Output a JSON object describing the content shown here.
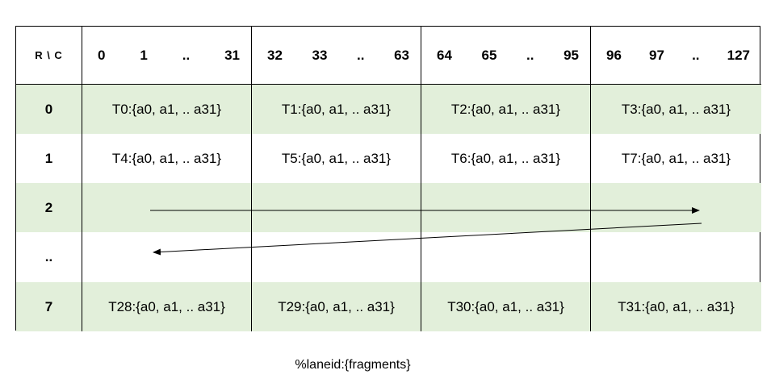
{
  "header": {
    "corner": "R \\ C",
    "column_groups": [
      [
        "0",
        "1",
        "..",
        "31"
      ],
      [
        "32",
        "33",
        "..",
        "63"
      ],
      [
        "64",
        "65",
        "..",
        "95"
      ],
      [
        "96",
        "97",
        "..",
        "127"
      ]
    ]
  },
  "rows": [
    {
      "label": "0",
      "cells": [
        "T0:{a0, a1, .. a31}",
        "T1:{a0, a1, .. a31}",
        "T2:{a0, a1, .. a31}",
        "T3:{a0, a1, .. a31}"
      ]
    },
    {
      "label": "1",
      "cells": [
        "T4:{a0, a1, .. a31}",
        "T5:{a0, a1, .. a31}",
        "T6:{a0, a1, .. a31}",
        "T7:{a0, a1, .. a31}"
      ]
    },
    {
      "label": "2",
      "cells": [
        "",
        "",
        "",
        ""
      ]
    },
    {
      "label": "..",
      "cells": [
        "",
        "",
        "",
        ""
      ]
    },
    {
      "label": "7",
      "cells": [
        "T28:{a0, a1, .. a31}",
        "T29:{a0, a1, .. a31}",
        "T30:{a0, a1, .. a31}",
        "T31:{a0, a1, .. a31}"
      ]
    }
  ],
  "caption": "%laneid:{fragments}",
  "colors": {
    "shaded_row": "#e2efda",
    "border": "#000000"
  }
}
